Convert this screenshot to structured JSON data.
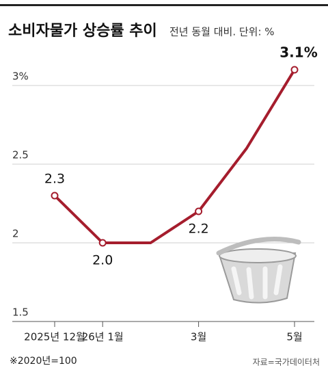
{
  "chart_data": {
    "type": "line",
    "title": "소비자물가 상승률 추이",
    "subtitle": "전년 동월 대비. 단위: %",
    "categories": [
      "2025년 12월",
      "26년 1월",
      null,
      "3월",
      null,
      "5월"
    ],
    "values": [
      2.3,
      2.0,
      2.0,
      2.2,
      2.6,
      3.1
    ],
    "value_labels": [
      "2.3",
      "2.0",
      null,
      "2.2",
      null,
      "3.1%"
    ],
    "color": "#a51d2d",
    "ylim": [
      1.5,
      3.2
    ],
    "yticks": [
      1.5,
      2,
      2.5,
      {
        "value": 3,
        "label": "3%"
      }
    ],
    "grid": true,
    "note": "※2020년=100",
    "source": "자료=국가데이터처"
  }
}
